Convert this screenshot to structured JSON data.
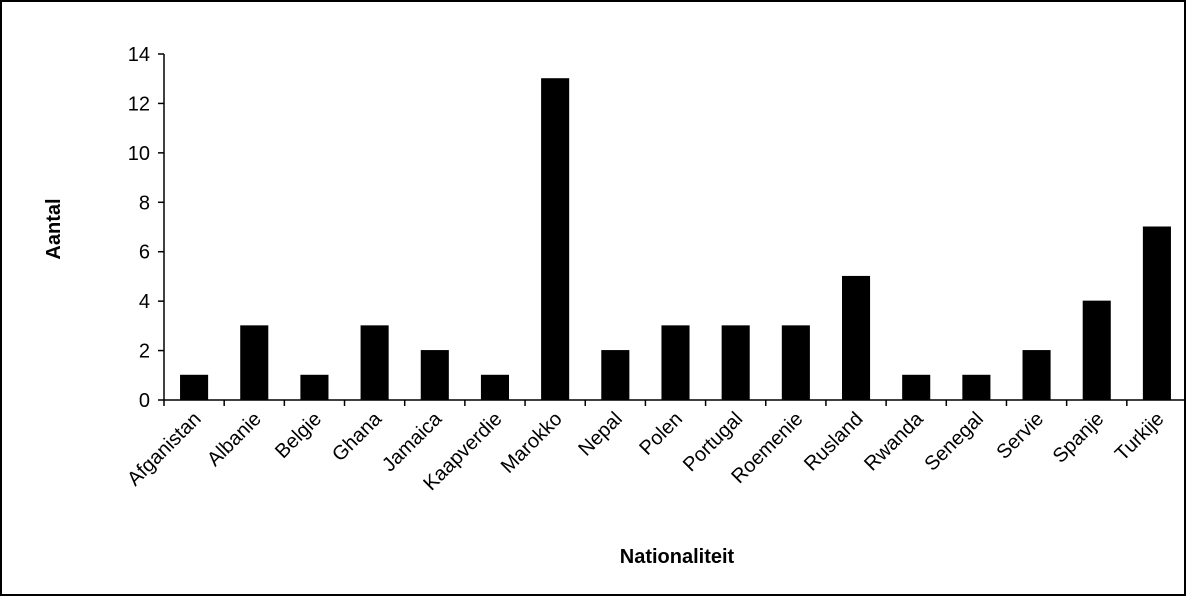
{
  "chart_data": {
    "type": "bar",
    "title": "",
    "xlabel": "Nationaliteit",
    "ylabel": "Aantal",
    "categories": [
      "Afganistan",
      "Albanie",
      "Belgie",
      "Ghana",
      "Jamaica",
      "Kaapverdie",
      "Marokko",
      "Nepal",
      "Polen",
      "Portugal",
      "Roemenie",
      "Rusland",
      "Rwanda",
      "Senegal",
      "Servie",
      "Spanje",
      "Turkije"
    ],
    "values": [
      1,
      3,
      1,
      3,
      2,
      1,
      13,
      2,
      3,
      3,
      3,
      5,
      1,
      1,
      2,
      4,
      7
    ],
    "ylim": [
      0,
      14
    ],
    "yticks": [
      "0",
      "2",
      "4",
      "6",
      "8",
      "10",
      "12",
      "14"
    ],
    "grid": false,
    "legend": "none",
    "colors": {
      "bar": "#000000",
      "axis": "#000000",
      "background": "#ffffff"
    }
  }
}
